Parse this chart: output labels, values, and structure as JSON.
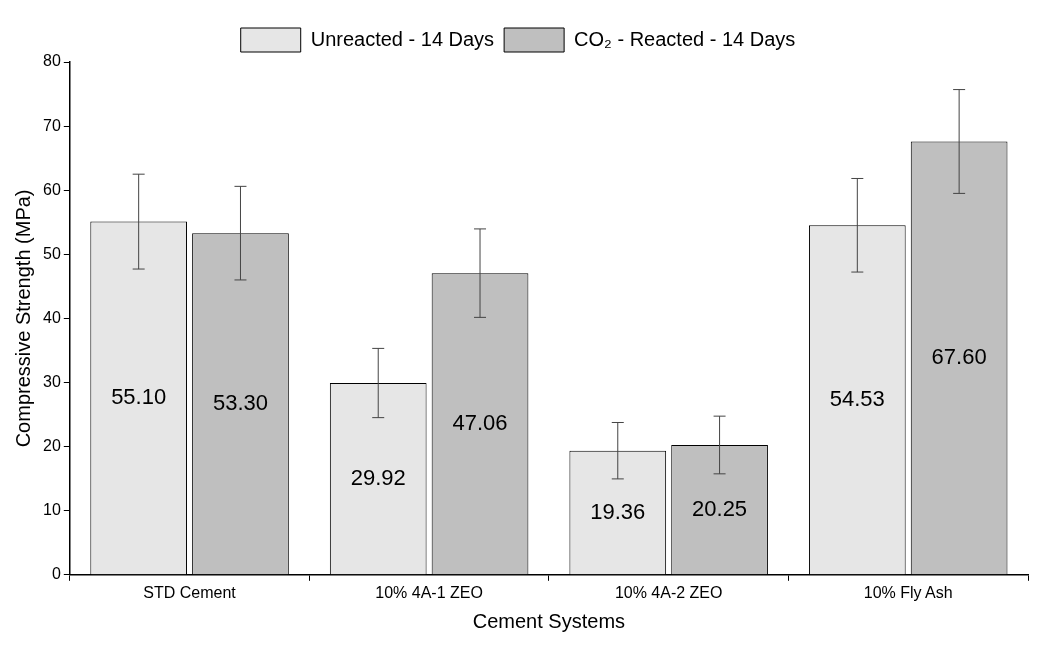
{
  "chart_data": {
    "type": "bar",
    "xlabel": "Cement Systems",
    "ylabel": "Compressive Strength (MPa)",
    "categories": [
      "STD Cement",
      "10% 4A-1 ZEO",
      "10% 4A-2 ZEO",
      "10% Fly Ash"
    ],
    "series": [
      {
        "name": "Unreacted - 14 Days",
        "color": "#e6e6e6",
        "values": [
          55.1,
          29.92,
          19.36,
          54.53
        ],
        "errors": [
          7.4,
          5.4,
          4.4,
          7.3
        ],
        "value_labels": [
          "55.10",
          "29.92",
          "19.36",
          "54.53"
        ]
      },
      {
        "name": "CO₂ - Reacted - 14 Days",
        "color": "#bfbfbf",
        "values": [
          53.3,
          47.06,
          20.25,
          67.6
        ],
        "errors": [
          7.3,
          6.9,
          4.5,
          8.1
        ],
        "value_labels": [
          "53.30",
          "47.06",
          "20.25",
          "67.60"
        ]
      }
    ],
    "ylim": [
      0,
      80
    ],
    "yticks": [
      0,
      10,
      20,
      30,
      40,
      50,
      60,
      70,
      80
    ],
    "legend": "top"
  }
}
